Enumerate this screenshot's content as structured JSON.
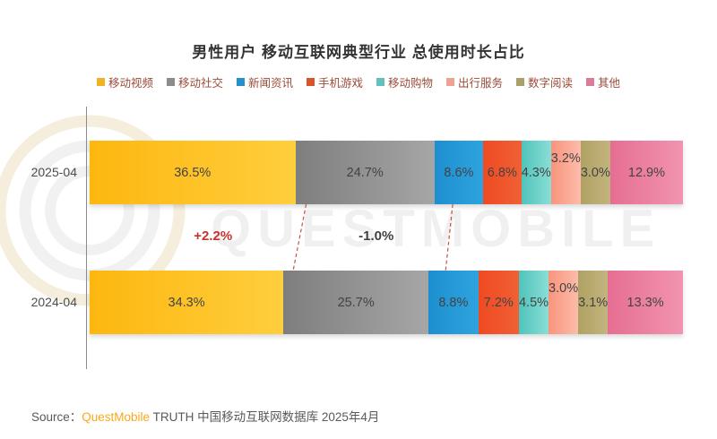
{
  "chart_data": {
    "type": "bar",
    "variant": "horizontal-stacked",
    "title": "男性用户 移动互联网典型行业 总使用时长占比",
    "categories": [
      "2025-04",
      "2024-04"
    ],
    "unit": "%",
    "xlim": [
      0,
      100
    ],
    "legend_position": "top-center",
    "series": [
      {
        "name": "移动视频",
        "color": "#FDB70F",
        "color2": "#FFCE3D",
        "legend_color": "#EFB422",
        "values": [
          36.5,
          34.3
        ],
        "labels": [
          "36.5%",
          "34.3%"
        ]
      },
      {
        "name": "移动社交",
        "color": "#7E7E7E",
        "color2": "#A6A6A6",
        "legend_color": "#8C8C8C",
        "values": [
          24.7,
          25.7
        ],
        "labels": [
          "24.7%",
          "25.7%"
        ]
      },
      {
        "name": "新闻资讯",
        "color": "#1D8FD0",
        "color2": "#2FA3DE",
        "legend_color": "#2691C9",
        "values": [
          8.6,
          8.8
        ],
        "labels": [
          "8.6%",
          "8.8%"
        ]
      },
      {
        "name": "手机游戏",
        "color": "#EF4A22",
        "color2": "#F06036",
        "legend_color": "#D8542C",
        "values": [
          6.8,
          7.2
        ],
        "labels": [
          "6.8%",
          "7.2%"
        ]
      },
      {
        "name": "移动购物",
        "color": "#4FC4BB",
        "color2": "#8ADED6",
        "legend_color": "#62C2BB",
        "values": [
          4.3,
          4.5
        ],
        "labels": [
          "4.3%",
          "4.5%"
        ]
      },
      {
        "name": "出行服务",
        "color": "#F9947C",
        "color2": "#FCBCAB",
        "legend_color": "#EFA193",
        "values": [
          3.2,
          3.0
        ],
        "labels": [
          "3.2%",
          "3.0%"
        ],
        "label_raised": true
      },
      {
        "name": "数字阅读",
        "color": "#B0A263",
        "color2": "#C2B47E",
        "legend_color": "#A9A06B",
        "values": [
          3.0,
          3.1
        ],
        "labels": [
          "3.0%",
          "3.1%"
        ]
      },
      {
        "name": "其他",
        "color": "#E56E92",
        "color2": "#F294B0",
        "legend_color": "#DB7D97",
        "values": [
          12.9,
          13.3
        ],
        "labels": [
          "12.9%",
          "13.3%"
        ]
      }
    ],
    "annotations": [
      {
        "text": "+2.2%",
        "refers_to": "移动视频",
        "color": "#C4342B"
      },
      {
        "text": "-1.0%",
        "refers_to": "移动社交",
        "color": "#3F3F3F"
      }
    ],
    "connector_boundaries_after_series": [
      0,
      1
    ]
  },
  "watermark_text": "QUESTMOBILE",
  "source": {
    "prefix": "Source：",
    "brand": "QuestMobile",
    "rest": " TRUTH 中国移动互联网数据库 2025年4月"
  },
  "colors": {
    "legend_text": "#9A4B38",
    "dashed_line": "#C85045",
    "source_brand": "#F9A81B",
    "axis_line": "#8C8C8C"
  }
}
